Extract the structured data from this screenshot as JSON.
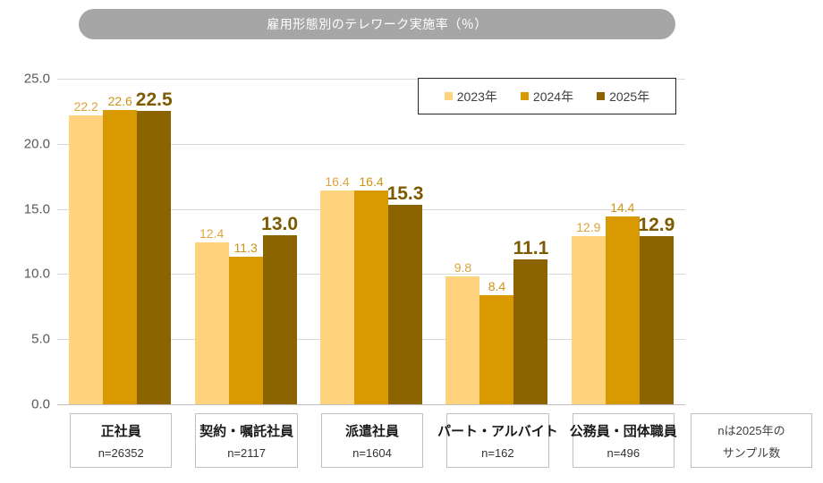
{
  "title": "雇用形態別のテレワーク実施率（％）",
  "y_axis": {
    "ticks": [
      "25.0",
      "20.0",
      "15.0",
      "10.0",
      "5.0",
      "0.0"
    ]
  },
  "note": {
    "line1": "nは2025年の",
    "line2": "サンプル数"
  },
  "chart_data": {
    "type": "bar",
    "title": "雇用形態別のテレワーク実施率（％）",
    "categories": [
      "正社員",
      "契約・嘱託社員",
      "派遣社員",
      "パート・アルバイト",
      "公務員・団体職員"
    ],
    "sample_sizes": [
      "n=26352",
      "n=2117",
      "n=1604",
      "n=162",
      "n=496"
    ],
    "series": [
      {
        "name": "2023年",
        "color": "#FFD37E",
        "label_color": "#DFA33C",
        "values": [
          22.2,
          12.4,
          16.4,
          9.8,
          12.9
        ]
      },
      {
        "name": "2024年",
        "color": "#D89A00",
        "label_color": "#CC9414",
        "values": [
          22.6,
          11.3,
          16.4,
          8.4,
          14.4
        ]
      },
      {
        "name": "2025年",
        "color": "#8B6400",
        "label_color": "#7C5A00",
        "values": [
          22.5,
          13.0,
          15.3,
          11.1,
          12.9
        ]
      }
    ],
    "ylim": [
      0,
      25
    ],
    "y_tick_step": 5,
    "grid": true,
    "legend_position": "top-right",
    "note": "nは2025年のサンプル数"
  },
  "colors": {
    "title_bg": "#A6A6A6",
    "gridline": "#D9D9D9",
    "baseline": "#BFBFBF",
    "axis_text": "#595959",
    "box_border": "#BFBFBF",
    "legend_border": "#262626"
  }
}
